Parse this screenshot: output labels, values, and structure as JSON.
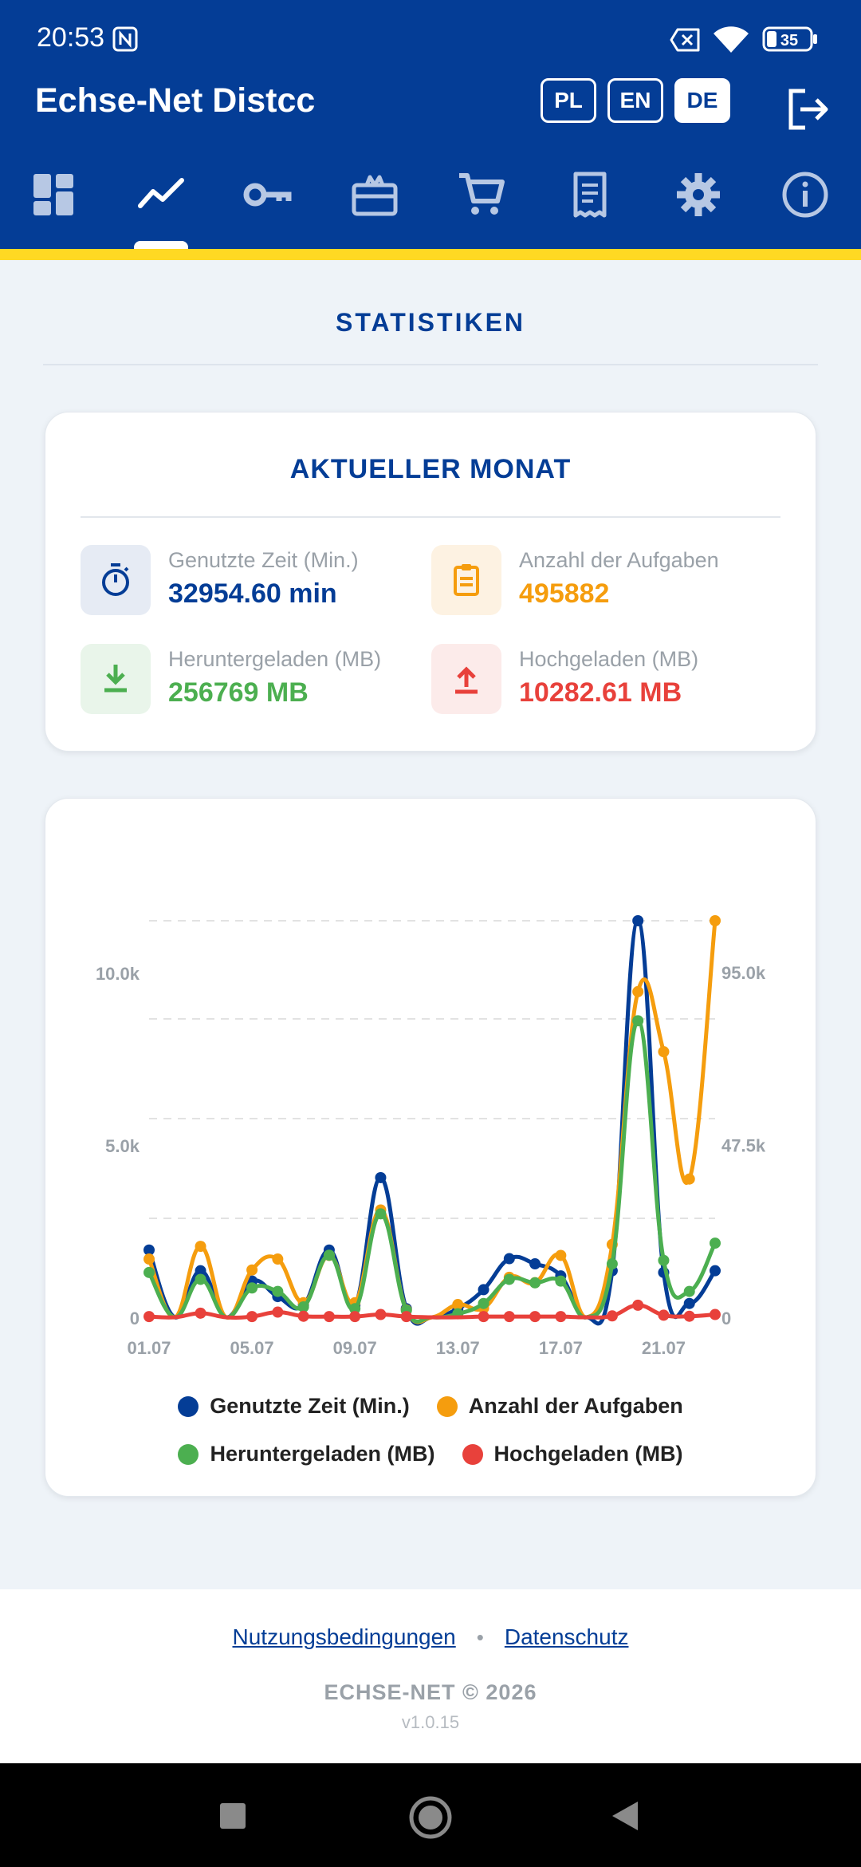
{
  "status_bar": {
    "time": "20:53",
    "battery": "35"
  },
  "header": {
    "title": "Echse-Net Distcc",
    "languages": [
      {
        "code": "PL",
        "active": false
      },
      {
        "code": "EN",
        "active": false
      },
      {
        "code": "DE",
        "active": true
      }
    ],
    "nav_tabs": [
      {
        "icon": "dashboard-icon",
        "active": false
      },
      {
        "icon": "chart-line-icon",
        "active": true
      },
      {
        "icon": "key-icon",
        "active": false
      },
      {
        "icon": "gift-card-icon",
        "active": false
      },
      {
        "icon": "cart-icon",
        "active": false
      },
      {
        "icon": "receipt-icon",
        "active": false
      },
      {
        "icon": "gear-icon",
        "active": false
      },
      {
        "icon": "info-icon",
        "active": false
      }
    ]
  },
  "page": {
    "title": "STATISTIKEN"
  },
  "stats_card": {
    "title": "AKTUELLER MONAT",
    "items": [
      {
        "label": "Genutzte Zeit (Min.)",
        "value": "32954.60 min",
        "icon": "stopwatch-icon",
        "color": "#043d96",
        "bg": "#e6ebf4"
      },
      {
        "label": "Anzahl der Aufgaben",
        "value": "495882",
        "icon": "clipboard-icon",
        "color": "#f59d0e",
        "bg": "#fdf2e2"
      },
      {
        "label": "Heruntergeladen (MB)",
        "value": "256769 MB",
        "icon": "download-icon",
        "color": "#4caf50",
        "bg": "#e9f5ea"
      },
      {
        "label": "Hochgeladen (MB)",
        "value": "10282.61 MB",
        "icon": "upload-icon",
        "color": "#e8413b",
        "bg": "#fcebea"
      }
    ]
  },
  "chart_data": {
    "type": "line",
    "x_tick_labels": [
      "01.07",
      "05.07",
      "09.07",
      "13.07",
      "17.07",
      "21.07"
    ],
    "x": [
      "01.07",
      "02.07",
      "03.07",
      "04.07",
      "05.07",
      "06.07",
      "07.07",
      "08.07",
      "09.07",
      "10.07",
      "11.07",
      "12.07",
      "13.07",
      "14.07",
      "15.07",
      "16.07",
      "17.07",
      "18.07",
      "19.07",
      "20.07",
      "21.07",
      "22.07",
      "23.07"
    ],
    "y_left": {
      "ticks": [
        "0",
        "5.0k",
        "10.0k"
      ],
      "range": [
        0,
        11500
      ]
    },
    "y_right": {
      "ticks": [
        "0",
        "47.5k",
        "95.0k"
      ],
      "range": [
        0,
        109000
      ]
    },
    "series": [
      {
        "name": "Genutzte Zeit (Min.)",
        "color": "#043d96",
        "axis": "left",
        "values": [
          1950,
          0,
          1350,
          0,
          1050,
          600,
          350,
          1950,
          350,
          4050,
          250,
          0,
          250,
          800,
          1700,
          1550,
          1200,
          0,
          1350,
          11500,
          1300,
          400,
          1350
        ]
      },
      {
        "name": "Anzahl der Aufgaben",
        "color": "#f59d0e",
        "axis": "right",
        "values": [
          16000,
          0,
          19500,
          0,
          13000,
          16000,
          4000,
          17000,
          4000,
          29500,
          2000,
          0,
          3500,
          2500,
          11000,
          9500,
          17000,
          0,
          20000,
          89500,
          73000,
          38000,
          109000
        ]
      },
      {
        "name": "Heruntergeladen (MB)",
        "color": "#4caf50",
        "axis": "left",
        "values": [
          1300,
          0,
          1100,
          0,
          850,
          750,
          300,
          1800,
          250,
          3000,
          200,
          0,
          100,
          400,
          1100,
          1000,
          1050,
          0,
          1550,
          8600,
          1650,
          750,
          2150
        ]
      },
      {
        "name": "Hochgeladen (MB)",
        "color": "#e8413b",
        "axis": "left",
        "values": [
          20,
          0,
          120,
          0,
          20,
          150,
          30,
          20,
          20,
          80,
          20,
          0,
          0,
          20,
          20,
          20,
          20,
          0,
          40,
          350,
          60,
          30,
          80
        ]
      }
    ],
    "grid": true,
    "legend_position": "bottom"
  },
  "footer": {
    "terms_link": "Nutzungsbedingungen",
    "separator": "•",
    "privacy_link": "Datenschutz",
    "copyright": "ECHSE-NET © 2026",
    "version": "v1.0.15"
  }
}
